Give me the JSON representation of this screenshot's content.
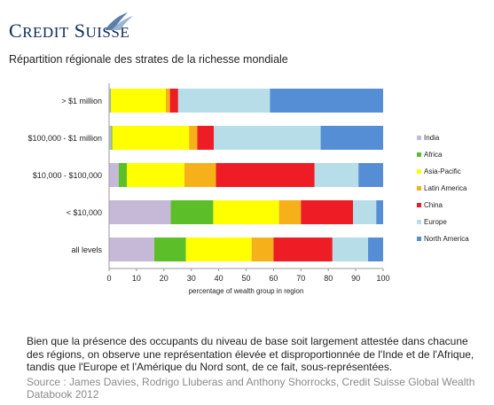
{
  "brand": {
    "logo_text": "Credit Suisse",
    "logo_color": "#0b2a5b"
  },
  "caption": {
    "body": "Bien que la présence des occupants du niveau de base soit largement attestée dans chacune des régions, on observe une représentation élevée et disproportionnée de l'Inde et de l'Afrique, tandis que l'Europe et l'Amérique du Nord sont, de ce fait, sous-représentées.",
    "source": "Source : James Davies, Rodrigo Lluberas and Anthony Shorrocks, Credit Suisse Global Wealth Databook 2012"
  },
  "chart_data": {
    "type": "bar",
    "orientation": "horizontal",
    "stacked": true,
    "title": "Répartition régionale des strates de la richesse mondiale",
    "xlabel": "percentage of wealth group in region",
    "ylabel": "",
    "xlim": [
      0,
      100
    ],
    "xticks": [
      0,
      10,
      20,
      30,
      40,
      50,
      60,
      70,
      80,
      90,
      100
    ],
    "grid": false,
    "legend_position": "right",
    "categories": [
      "> $1 million",
      "$100,000 - $1 million",
      "$10,000 - $100,000",
      "< $10,000",
      "all levels"
    ],
    "series": [
      {
        "name": "India",
        "color": "#c6b9d8",
        "values": [
          0.5,
          0.8,
          3.5,
          22.5,
          16.5
        ]
      },
      {
        "name": "Africa",
        "color": "#5cbf2a",
        "values": [
          0.2,
          0.4,
          3.0,
          15.5,
          11.5
        ]
      },
      {
        "name": "Asia-Pacific",
        "color": "#ffff00",
        "values": [
          20.0,
          28.0,
          21.0,
          24.0,
          24.0
        ]
      },
      {
        "name": "Latin America",
        "color": "#f6b11a",
        "values": [
          1.5,
          3.0,
          11.5,
          8.0,
          8.0
        ]
      },
      {
        "name": "China",
        "color": "#ee1c25",
        "values": [
          3.0,
          6.0,
          36.0,
          19.0,
          21.5
        ]
      },
      {
        "name": "Europe",
        "color": "#b7dde8",
        "values": [
          33.5,
          39.0,
          16.0,
          8.5,
          13.0
        ]
      },
      {
        "name": "North America",
        "color": "#558ed5",
        "values": [
          41.3,
          22.8,
          9.0,
          2.5,
          5.5
        ]
      }
    ]
  }
}
